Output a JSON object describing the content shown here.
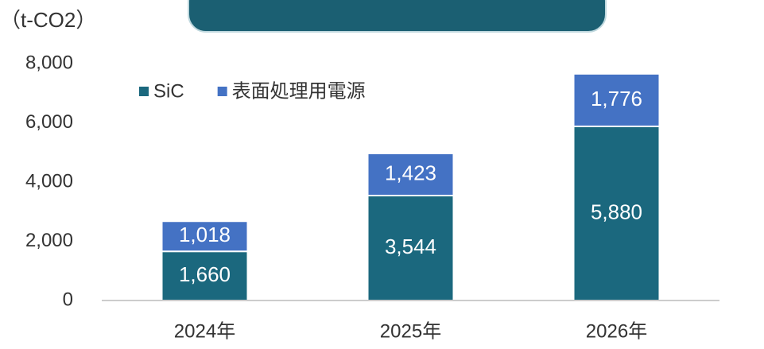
{
  "chart_data": {
    "type": "stacked_bar",
    "y_axis_label": "（t-CO2）",
    "categories": [
      "2024年",
      "2025年",
      "2026年"
    ],
    "series": [
      {
        "name": "SiC",
        "color": "#1b687e",
        "values": [
          1660,
          3544,
          5880
        ],
        "value_labels": [
          "1,660",
          "3,544",
          "5,880"
        ]
      },
      {
        "name": "表面処理用電源",
        "color": "#4472c4",
        "values": [
          1018,
          1423,
          1776
        ],
        "value_labels": [
          "1,018",
          "1,423",
          "1,776"
        ]
      }
    ],
    "ylim": [
      0,
      8000
    ],
    "yticks": [
      0,
      {
        "value": 2000,
        "label": "2,000"
      },
      {
        "value": 4000,
        "label": "4,000"
      },
      {
        "value": 6000,
        "label": "6,000"
      },
      {
        "value": 8000,
        "label": "8,000"
      }
    ],
    "grid": false,
    "legend": "top-left"
  }
}
